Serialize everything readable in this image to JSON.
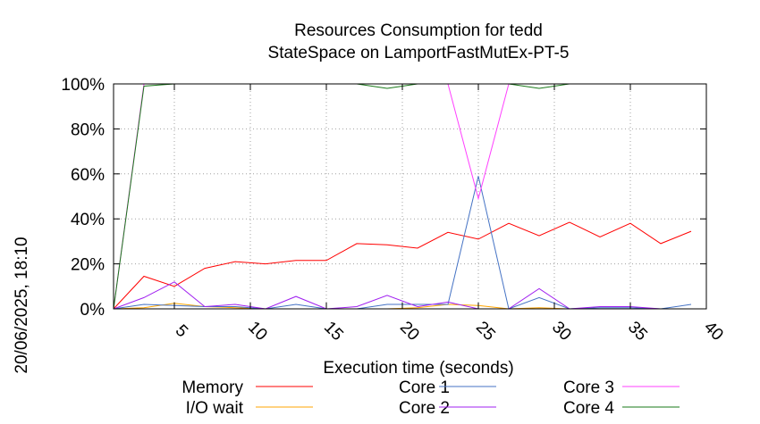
{
  "chart_data": {
    "type": "line",
    "title": "Resources Consumption for tedd",
    "subtitle": "StateSpace on LamportFastMutEx-PT-5",
    "xlabel": "Execution time (seconds)",
    "ylabel": "",
    "side_label": "20/06/2025, 18:10",
    "xlim": [
      1,
      40
    ],
    "ylim": [
      0,
      100
    ],
    "x_ticks": [
      5,
      10,
      15,
      20,
      25,
      30,
      35,
      40
    ],
    "y_ticks": [
      0,
      20,
      40,
      60,
      80,
      100
    ],
    "y_tick_labels": [
      "0%",
      "20%",
      "40%",
      "60%",
      "80%",
      "100%"
    ],
    "grid": true,
    "legend_position": "bottom",
    "series": [
      {
        "name": "Memory",
        "color": "#ff0000",
        "x": [
          1,
          3,
          5,
          7,
          9,
          11,
          13,
          15,
          17,
          19,
          21,
          23,
          25,
          27,
          29,
          31,
          33,
          35,
          37,
          39
        ],
        "values": [
          0,
          14.5,
          10,
          18,
          21,
          20,
          21.5,
          21.5,
          29,
          28.5,
          27,
          34,
          31,
          38,
          32.5,
          38.5,
          32,
          38,
          29,
          34.5
        ]
      },
      {
        "name": "I/O wait",
        "color": "#ffa500",
        "x": [
          1,
          3,
          5,
          7,
          9,
          11,
          13,
          15,
          17,
          19,
          21,
          23,
          25,
          27,
          29,
          31,
          33,
          35,
          37,
          39
        ],
        "values": [
          0,
          0.5,
          2.5,
          1,
          0.5,
          0,
          0,
          0,
          0,
          0,
          0.5,
          2,
          1.5,
          0,
          0.5,
          0,
          0,
          0,
          0,
          0
        ]
      },
      {
        "name": "Core 1",
        "color": "#4472c4",
        "x": [
          1,
          3,
          5,
          7,
          9,
          11,
          13,
          15,
          17,
          19,
          21,
          23,
          25,
          27,
          29,
          31,
          33,
          35,
          37,
          39
        ],
        "values": [
          0,
          2,
          1.5,
          1,
          1,
          0,
          2,
          0,
          0,
          2,
          2,
          2,
          59,
          0,
          5,
          0,
          0.5,
          0.5,
          0,
          2
        ]
      },
      {
        "name": "Core 2",
        "color": "#a020f0",
        "x": [
          1,
          3,
          5,
          7,
          9,
          11,
          13,
          15,
          17,
          19,
          21,
          23,
          25,
          27,
          29,
          31,
          33,
          35,
          37,
          39
        ],
        "values": [
          0,
          5,
          12,
          1,
          2,
          0,
          5.5,
          0,
          1,
          6,
          1,
          3,
          0,
          0,
          9,
          0,
          1,
          1,
          0,
          0
        ]
      },
      {
        "name": "Core 3",
        "color": "#ff40ff",
        "x": [
          1,
          3,
          5,
          7,
          9,
          11,
          13,
          15,
          17,
          19,
          21,
          23,
          25,
          27,
          29,
          31,
          33,
          35,
          37,
          39
        ],
        "values": [
          0,
          100,
          100,
          100,
          100,
          100,
          100,
          100,
          100,
          100,
          100,
          100,
          49,
          100,
          100,
          100,
          100,
          100,
          100,
          100
        ]
      },
      {
        "name": "Core 4",
        "color": "#1a7a1a",
        "x": [
          1,
          3,
          5,
          7,
          9,
          11,
          13,
          15,
          17,
          19,
          21,
          23,
          25,
          27,
          29,
          31,
          33,
          35,
          37,
          39
        ],
        "values": [
          0,
          99,
          100,
          100,
          100,
          100,
          100,
          100,
          100,
          98,
          100,
          100,
          100,
          100,
          98,
          100,
          100,
          100,
          100,
          100
        ]
      }
    ]
  }
}
